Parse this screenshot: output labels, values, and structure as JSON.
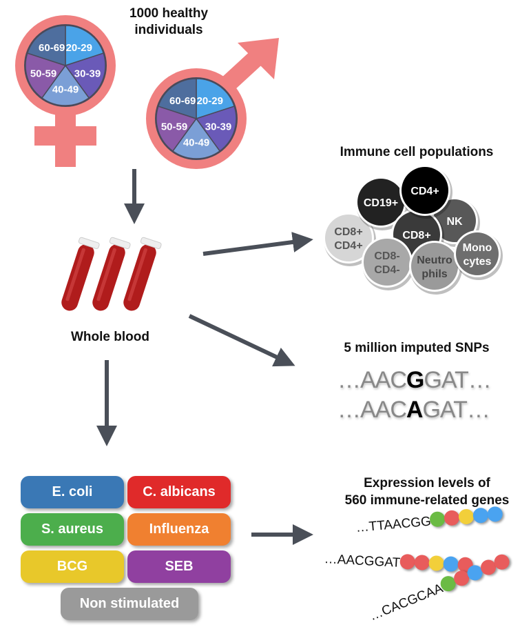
{
  "cohort": {
    "title_line1": "1000 healthy",
    "title_line2": "individuals",
    "age_groups": [
      "20-29",
      "30-39",
      "40-49",
      "50-59",
      "60-69"
    ],
    "age_colors": [
      "#4aa3e8",
      "#6a5ab8",
      "#7b9fd6",
      "#8a5aa8",
      "#4e6e9e"
    ],
    "symbol_color": "#f08080"
  },
  "blood": {
    "label": "Whole blood",
    "tube_color": "#b01c1c"
  },
  "immune": {
    "title": "Immune cell populations",
    "cells": [
      {
        "line1": "CD8+",
        "line2": "CD4+",
        "color": "#d6d6d6",
        "text": "#555"
      },
      {
        "line1": "CD19+",
        "line2": "",
        "color": "#222222",
        "text": "#fff"
      },
      {
        "line1": "CD4+",
        "line2": "",
        "color": "#000000",
        "text": "#fff"
      },
      {
        "line1": "NK",
        "line2": "",
        "color": "#585858",
        "text": "#fff"
      },
      {
        "line1": "CD8+",
        "line2": "",
        "color": "#3a3a3a",
        "text": "#fff"
      },
      {
        "line1": "CD8-",
        "line2": "CD4-",
        "color": "#a8a8a8",
        "text": "#555"
      },
      {
        "line1": "Neutro",
        "line2": "phils",
        "color": "#9a9a9a",
        "text": "#444"
      },
      {
        "line1": "Mono",
        "line2": "cytes",
        "color": "#6e6e6e",
        "text": "#fff"
      }
    ]
  },
  "snps": {
    "title": "5 million imputed SNPs",
    "seq1": {
      "pre": "…AAC",
      "snp": "G",
      "post": "GAT…"
    },
    "seq2": {
      "pre": "…AAC",
      "snp": "A",
      "post": "GAT…"
    }
  },
  "expression": {
    "title_line1": "Expression levels of",
    "title_line2": "560 immune-related genes",
    "sequences": [
      {
        "text": "…TTAACGG",
        "beads": [
          "#6bbb44",
          "#e85c5c",
          "#f2cf3a",
          "#4aa3f0",
          "#4aa3f0"
        ]
      },
      {
        "text": "…AACGGAT",
        "beads": [
          "#e85c5c",
          "#e85c5c",
          "#f2cf3a",
          "#4aa3f0",
          "#e85c5c"
        ]
      },
      {
        "text": "…CACGCAA",
        "beads": [
          "#6bbb44",
          "#e85c5c",
          "#4aa3f0",
          "#e85c5c",
          "#e85c5c"
        ]
      }
    ]
  },
  "stimuli": [
    {
      "label": "E. coli",
      "color": "#3a78b5"
    },
    {
      "label": "C. albicans",
      "color": "#e02a2a"
    },
    {
      "label": "S. aureus",
      "color": "#4cae4c"
    },
    {
      "label": "Influenza",
      "color": "#f08030"
    },
    {
      "label": "BCG",
      "color": "#e8c82a"
    },
    {
      "label": "SEB",
      "color": "#9040a0"
    },
    {
      "label": "Non stimulated",
      "color": "#9a9a9a"
    }
  ]
}
